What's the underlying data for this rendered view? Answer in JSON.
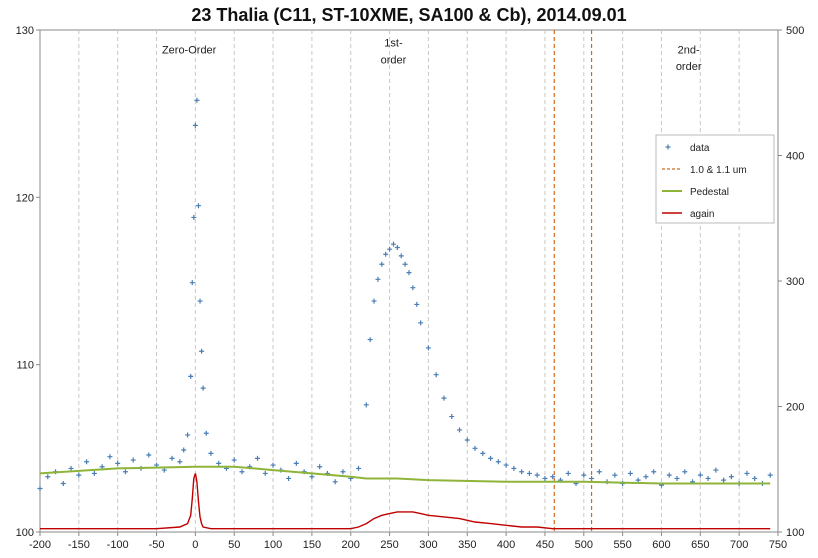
{
  "chart_data": {
    "type": "scatter",
    "title": "23 Thalia (C11, ST-10XME, SA100 & Cb), 2014.09.01",
    "xlabel": "",
    "ylabel": "",
    "xlim": [
      -200,
      750
    ],
    "ylim": [
      100,
      130
    ],
    "y2lim": [
      100,
      500
    ],
    "xticks": [
      -200,
      -150,
      -100,
      -50,
      0,
      50,
      100,
      150,
      200,
      250,
      300,
      350,
      400,
      450,
      500,
      550,
      600,
      650,
      700,
      750
    ],
    "yticks": [
      100,
      110,
      120,
      130
    ],
    "y2ticks": [
      100,
      200,
      300,
      400,
      500
    ],
    "grid": "vertical dashed",
    "legend_position": "right",
    "annotations": [
      {
        "text": "Zero-Order",
        "x": -8,
        "y": 128.6
      },
      {
        "text": "1st-",
        "x": 255,
        "y": 129.0
      },
      {
        "text": "order",
        "x": 255,
        "y": 128.0
      },
      {
        "text": "2nd-",
        "x": 635,
        "y": 128.6
      },
      {
        "text": "order",
        "x": 635,
        "y": 127.6
      }
    ],
    "vlines": [
      462,
      510
    ],
    "series": [
      {
        "name": "data",
        "kind": "scatter",
        "axis": "left",
        "color": "#4a7eb5",
        "x": [
          -200,
          -190,
          -180,
          -170,
          -160,
          -150,
          -140,
          -130,
          -120,
          -110,
          -100,
          -90,
          -80,
          -70,
          -60,
          -50,
          -40,
          -30,
          -20,
          -15,
          -10,
          -6,
          -4,
          -2,
          0,
          2,
          4,
          6,
          8,
          10,
          14,
          20,
          30,
          40,
          50,
          60,
          70,
          80,
          90,
          100,
          110,
          120,
          130,
          140,
          150,
          160,
          170,
          180,
          190,
          200,
          210,
          220,
          225,
          230,
          235,
          240,
          245,
          250,
          255,
          260,
          265,
          270,
          275,
          280,
          285,
          290,
          300,
          310,
          320,
          330,
          340,
          350,
          360,
          370,
          380,
          390,
          400,
          410,
          420,
          430,
          440,
          450,
          460,
          470,
          480,
          490,
          500,
          510,
          520,
          530,
          540,
          550,
          560,
          570,
          580,
          590,
          600,
          610,
          620,
          630,
          640,
          650,
          660,
          670,
          680,
          690,
          700,
          710,
          720,
          730,
          740
        ],
        "y": [
          102.6,
          103.3,
          103.6,
          102.9,
          103.8,
          103.4,
          104.2,
          103.5,
          103.9,
          104.5,
          104.1,
          103.6,
          104.3,
          103.8,
          104.6,
          104.0,
          103.7,
          104.4,
          104.2,
          104.9,
          105.8,
          109.3,
          114.9,
          118.8,
          124.3,
          125.8,
          119.5,
          113.8,
          110.8,
          108.6,
          105.9,
          104.7,
          104.1,
          103.8,
          104.3,
          103.6,
          103.9,
          104.4,
          103.5,
          104.0,
          103.7,
          103.2,
          104.1,
          103.6,
          103.3,
          103.9,
          103.5,
          103.0,
          103.6,
          103.2,
          103.8,
          107.6,
          111.5,
          113.8,
          115.1,
          116.0,
          116.6,
          116.9,
          117.2,
          117.0,
          116.5,
          116.0,
          115.5,
          114.6,
          113.6,
          112.5,
          111.0,
          109.4,
          108.0,
          106.9,
          106.1,
          105.5,
          105.0,
          104.7,
          104.4,
          104.2,
          104.0,
          103.8,
          103.6,
          103.5,
          103.4,
          103.2,
          103.3,
          103.1,
          103.5,
          102.9,
          103.4,
          103.2,
          103.6,
          103.0,
          103.4,
          102.9,
          103.5,
          103.1,
          103.3,
          103.6,
          102.8,
          103.4,
          103.2,
          103.6,
          103.0,
          103.4,
          103.2,
          103.7,
          103.1,
          103.3,
          102.9,
          103.5,
          103.2,
          102.9,
          103.4
        ]
      },
      {
        "name": "1.0 & 1.1 um",
        "kind": "vline",
        "color": "#d2691e",
        "x": [
          462,
          510
        ]
      },
      {
        "name": "Pedestal",
        "kind": "line",
        "axis": "left",
        "color": "#8fb43a",
        "x": [
          -200,
          -100,
          0,
          50,
          100,
          150,
          200,
          220,
          260,
          300,
          400,
          500,
          600,
          700,
          740
        ],
        "y": [
          103.5,
          103.8,
          103.9,
          103.9,
          103.7,
          103.5,
          103.3,
          103.2,
          103.2,
          103.1,
          103.0,
          103.0,
          102.9,
          102.9,
          102.9
        ]
      },
      {
        "name": "again",
        "kind": "line",
        "axis": "left",
        "color": "#c00000",
        "x": [
          -200,
          -150,
          -100,
          -50,
          -20,
          -10,
          -6,
          -4,
          -2,
          0,
          2,
          4,
          6,
          8,
          10,
          20,
          50,
          100,
          150,
          200,
          210,
          220,
          230,
          240,
          250,
          260,
          270,
          280,
          290,
          300,
          320,
          340,
          360,
          380,
          400,
          420,
          440,
          460,
          480,
          500,
          550,
          600,
          650,
          700,
          740
        ],
        "y": [
          100.2,
          100.2,
          100.2,
          100.2,
          100.3,
          100.5,
          101.0,
          102.0,
          103.2,
          103.5,
          103.0,
          101.8,
          100.9,
          100.5,
          100.3,
          100.2,
          100.2,
          100.2,
          100.2,
          100.2,
          100.3,
          100.5,
          100.8,
          101.0,
          101.1,
          101.2,
          101.2,
          101.2,
          101.1,
          101.0,
          100.9,
          100.8,
          100.6,
          100.5,
          100.4,
          100.3,
          100.3,
          100.2,
          100.2,
          100.2,
          100.2,
          100.2,
          100.2,
          100.2,
          100.2
        ]
      }
    ]
  }
}
